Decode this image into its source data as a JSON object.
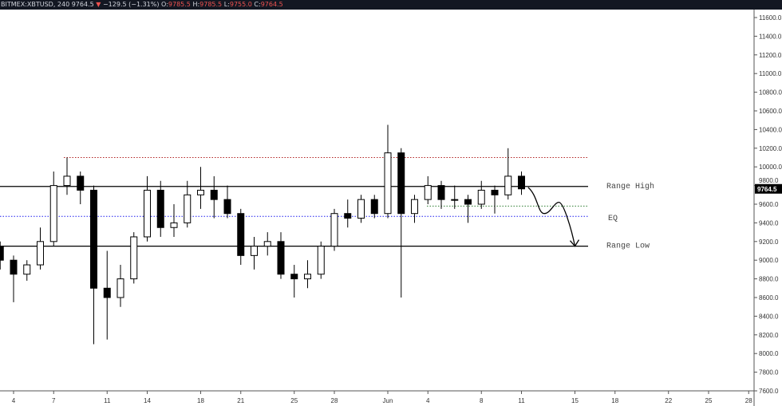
{
  "header": {
    "symbol": "BITMEX:XBTUSD, 240",
    "last": "9764.5",
    "change": "−129.5 (−1.31%)",
    "open_label": "O:",
    "open": "9785.5",
    "high_label": "H:",
    "high": "9785.5",
    "low_label": "L:",
    "low": "9755.0",
    "close_label": "C:",
    "close": "9764.5"
  },
  "colors": {
    "up_fill": "#ffffff",
    "down_fill": "#000000",
    "wick": "#000000",
    "resistance_dotted": "#b22222",
    "eq_dotted": "#1e1ef0",
    "support_dotted": "#2e7d32",
    "negative": "#ef5350"
  },
  "chart_data": {
    "type": "candlestick",
    "ylim": [
      7600,
      11700
    ],
    "y_ticks": [
      7600,
      7800,
      8000,
      8200,
      8400,
      8600,
      8800,
      9000,
      9200,
      9400,
      9600,
      9800,
      10000,
      10200,
      10400,
      10600,
      10800,
      11000,
      11200,
      11400,
      11600
    ],
    "x_ticks": [
      {
        "day": 4,
        "label": "4"
      },
      {
        "day": 7,
        "label": "7"
      },
      {
        "day": 11,
        "label": "11"
      },
      {
        "day": 14,
        "label": "14"
      },
      {
        "day": 18,
        "label": "18"
      },
      {
        "day": 21,
        "label": "21"
      },
      {
        "day": 25,
        "label": "25"
      },
      {
        "day": 28,
        "label": "28"
      },
      {
        "day": 32,
        "label": "Jun"
      },
      {
        "day": 35,
        "label": "4"
      },
      {
        "day": 39,
        "label": "8"
      },
      {
        "day": 42,
        "label": "11"
      },
      {
        "day": 46,
        "label": "15"
      },
      {
        "day": 49,
        "label": "18"
      },
      {
        "day": 53,
        "label": "22"
      },
      {
        "day": 56,
        "label": "25"
      },
      {
        "day": 59,
        "label": "28"
      }
    ],
    "ohlc": [
      {
        "day": 3,
        "o": 9150,
        "h": 9200,
        "l": 8900,
        "c": 9000
      },
      {
        "day": 4,
        "o": 9000,
        "h": 9050,
        "l": 8550,
        "c": 8850
      },
      {
        "day": 5,
        "o": 8850,
        "h": 9000,
        "l": 8780,
        "c": 8950
      },
      {
        "day": 6,
        "o": 8950,
        "h": 9350,
        "l": 8900,
        "c": 9200
      },
      {
        "day": 7,
        "o": 9200,
        "h": 9950,
        "l": 9150,
        "c": 9800
      },
      {
        "day": 8,
        "o": 9800,
        "h": 10100,
        "l": 9700,
        "c": 9900
      },
      {
        "day": 9,
        "o": 9900,
        "h": 9950,
        "l": 9600,
        "c": 9750
      },
      {
        "day": 10,
        "o": 9750,
        "h": 9800,
        "l": 8100,
        "c": 8700
      },
      {
        "day": 11,
        "o": 8700,
        "h": 9100,
        "l": 8150,
        "c": 8600
      },
      {
        "day": 12,
        "o": 8600,
        "h": 8950,
        "l": 8500,
        "c": 8800
      },
      {
        "day": 13,
        "o": 8800,
        "h": 9300,
        "l": 8750,
        "c": 9250
      },
      {
        "day": 14,
        "o": 9250,
        "h": 9900,
        "l": 9200,
        "c": 9750
      },
      {
        "day": 15,
        "o": 9750,
        "h": 9850,
        "l": 9250,
        "c": 9350
      },
      {
        "day": 16,
        "o": 9350,
        "h": 9600,
        "l": 9250,
        "c": 9400
      },
      {
        "day": 17,
        "o": 9400,
        "h": 9850,
        "l": 9350,
        "c": 9700
      },
      {
        "day": 18,
        "o": 9700,
        "h": 10000,
        "l": 9550,
        "c": 9750
      },
      {
        "day": 19,
        "o": 9750,
        "h": 9900,
        "l": 9450,
        "c": 9650
      },
      {
        "day": 20,
        "o": 9650,
        "h": 9800,
        "l": 9450,
        "c": 9500
      },
      {
        "day": 21,
        "o": 9500,
        "h": 9550,
        "l": 8950,
        "c": 9050
      },
      {
        "day": 22,
        "o": 9050,
        "h": 9250,
        "l": 8900,
        "c": 9150
      },
      {
        "day": 23,
        "o": 9150,
        "h": 9300,
        "l": 9050,
        "c": 9200
      },
      {
        "day": 24,
        "o": 9200,
        "h": 9300,
        "l": 8800,
        "c": 8850
      },
      {
        "day": 25,
        "o": 8850,
        "h": 8950,
        "l": 8600,
        "c": 8800
      },
      {
        "day": 26,
        "o": 8800,
        "h": 9000,
        "l": 8700,
        "c": 8850
      },
      {
        "day": 27,
        "o": 8850,
        "h": 9200,
        "l": 8800,
        "c": 9150
      },
      {
        "day": 28,
        "o": 9150,
        "h": 9550,
        "l": 9100,
        "c": 9500
      },
      {
        "day": 29,
        "o": 9500,
        "h": 9650,
        "l": 9350,
        "c": 9450
      },
      {
        "day": 30,
        "o": 9450,
        "h": 9700,
        "l": 9400,
        "c": 9650
      },
      {
        "day": 31,
        "o": 9650,
        "h": 9700,
        "l": 9450,
        "c": 9500
      },
      {
        "day": 32,
        "o": 9500,
        "h": 10450,
        "l": 9450,
        "c": 10150
      },
      {
        "day": 33,
        "o": 10150,
        "h": 10200,
        "l": 8600,
        "c": 9500
      },
      {
        "day": 34,
        "o": 9500,
        "h": 9700,
        "l": 9400,
        "c": 9650
      },
      {
        "day": 35,
        "o": 9650,
        "h": 9900,
        "l": 9600,
        "c": 9800
      },
      {
        "day": 36,
        "o": 9800,
        "h": 9850,
        "l": 9550,
        "c": 9650
      },
      {
        "day": 37,
        "o": 9650,
        "h": 9800,
        "l": 9550,
        "c": 9650
      },
      {
        "day": 38,
        "o": 9650,
        "h": 9700,
        "l": 9400,
        "c": 9600
      },
      {
        "day": 39,
        "o": 9600,
        "h": 9850,
        "l": 9550,
        "c": 9750
      },
      {
        "day": 40,
        "o": 9750,
        "h": 9800,
        "l": 9500,
        "c": 9700
      },
      {
        "day": 41,
        "o": 9700,
        "h": 10200,
        "l": 9650,
        "c": 9900
      },
      {
        "day": 42,
        "o": 9900,
        "h": 9950,
        "l": 9700,
        "c": 9764.5
      }
    ],
    "levels": [
      {
        "name": "Range High",
        "price": 9790,
        "style": "solid"
      },
      {
        "name": "EQ",
        "price": 9470,
        "style": "dotted-blue"
      },
      {
        "name": "Range Low",
        "price": 9150,
        "style": "solid"
      },
      {
        "name": "",
        "price": 10100,
        "style": "dotted-red"
      },
      {
        "name": "",
        "price": 9580,
        "style": "dotted-green"
      }
    ],
    "projection_path": [
      {
        "day": 42.5,
        "price": 9780
      },
      {
        "day": 43.7,
        "price": 9500
      },
      {
        "day": 44.8,
        "price": 9620
      },
      {
        "day": 46,
        "price": 9150
      }
    ],
    "last_price_label": "9764.5"
  }
}
